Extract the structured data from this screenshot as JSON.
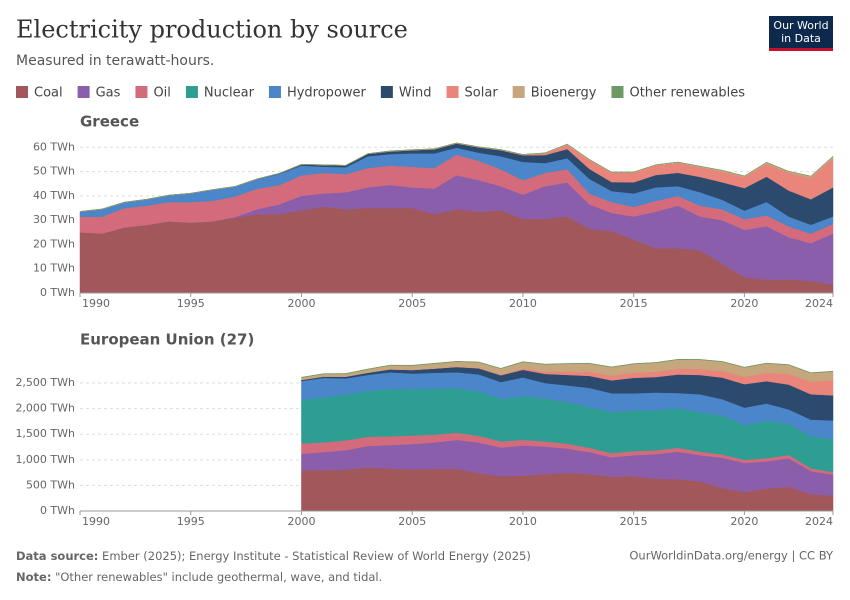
{
  "header": {
    "title": "Electricity production by source",
    "subtitle": "Measured in terawatt-hours.",
    "logo": [
      "Our World",
      "in Data"
    ]
  },
  "chart_data": [
    {
      "type": "area",
      "stacked": true,
      "title": "Greece",
      "x": [
        1990,
        1991,
        1992,
        1993,
        1994,
        1995,
        1996,
        1997,
        1998,
        1999,
        2000,
        2001,
        2002,
        2003,
        2004,
        2005,
        2006,
        2007,
        2008,
        2009,
        2010,
        2011,
        2012,
        2013,
        2014,
        2015,
        2016,
        2017,
        2018,
        2019,
        2020,
        2021,
        2022,
        2023,
        2024
      ],
      "xlim": [
        1990,
        2024
      ],
      "xticks": [
        1990,
        1995,
        2000,
        2005,
        2010,
        2015,
        2020,
        2024
      ],
      "ylim": [
        0,
        63
      ],
      "yticks": [
        {
          "value": 0,
          "label": "0 TWh"
        },
        {
          "value": 10,
          "label": "10 TWh"
        },
        {
          "value": 20,
          "label": "20 TWh"
        },
        {
          "value": 30,
          "label": "30 TWh"
        },
        {
          "value": 40,
          "label": "40 TWh"
        },
        {
          "value": 50,
          "label": "50 TWh"
        },
        {
          "value": 60,
          "label": "60 TWh"
        }
      ],
      "grid": true,
      "series": [
        {
          "name": "Coal",
          "color": "#a2575b",
          "values": [
            25,
            24.5,
            27,
            28,
            29.5,
            29,
            29.5,
            31,
            32.5,
            32.5,
            34,
            35.5,
            34.5,
            35,
            35,
            35,
            32.5,
            34.5,
            33.5,
            34,
            30.5,
            30.5,
            31.5,
            26.5,
            25.5,
            22,
            18.5,
            18.5,
            17.5,
            12,
            6.5,
            5.5,
            5.5,
            5,
            3.5
          ]
        },
        {
          "name": "Gas",
          "color": "#8a5eaa",
          "values": [
            0,
            0,
            0,
            0,
            0,
            0,
            0,
            0.3,
            2,
            4,
            6,
            5.5,
            7,
            8.5,
            9.5,
            8.5,
            10.5,
            14,
            13,
            10,
            10,
            13.5,
            14,
            10,
            7.5,
            9.5,
            15,
            17.5,
            14,
            18,
            19.5,
            22,
            17.5,
            15.5,
            21
          ]
        },
        {
          "name": "Oil",
          "color": "#d46b7c",
          "values": [
            6.5,
            7,
            8,
            8,
            8,
            8.5,
            8.5,
            8.5,
            8.5,
            8,
            8.5,
            8.5,
            7.5,
            8,
            8,
            8.5,
            8.5,
            8.5,
            8,
            7,
            6,
            5.5,
            5.5,
            4.5,
            4.5,
            4,
            4.5,
            4,
            4.5,
            4.5,
            4.5,
            4.5,
            4.5,
            4,
            4
          ]
        },
        {
          "name": "Nuclear",
          "color": "#2f9e92",
          "values": [
            0,
            0,
            0,
            0,
            0,
            0,
            0,
            0,
            0,
            0,
            0,
            0,
            0,
            0,
            0,
            0,
            0,
            0,
            0,
            0,
            0,
            0,
            0,
            0,
            0,
            0,
            0,
            0,
            0,
            0,
            0,
            0,
            0,
            0,
            0
          ]
        },
        {
          "name": "Hydropower",
          "color": "#4a86c9",
          "values": [
            2,
            3,
            2.3,
            2.5,
            2.7,
            3.5,
            4.5,
            4,
            3.8,
            4.5,
            4,
            2.5,
            2.8,
            4.8,
            4.7,
            5.5,
            6,
            2.8,
            3.3,
            5.3,
            7.5,
            4,
            4.5,
            6,
            4.5,
            5.5,
            5.5,
            4,
            5.5,
            3.9,
            3.4,
            5.5,
            4,
            3.6,
            3
          ]
        },
        {
          "name": "Wind",
          "color": "#2c4a6e",
          "values": [
            0,
            0,
            0,
            0,
            0,
            0,
            0,
            0,
            0.1,
            0.2,
            0.4,
            0.7,
            0.7,
            1,
            1.1,
            1.3,
            1.7,
            1.8,
            2.2,
            2.5,
            2.7,
            3.3,
            3.8,
            4.1,
            3.7,
            4.6,
            5.1,
            5.5,
            6.3,
            7.2,
            9.3,
            10.4,
            10.7,
            10.5,
            12
          ]
        },
        {
          "name": "Solar",
          "color": "#e9857b",
          "values": [
            0,
            0,
            0,
            0,
            0,
            0,
            0,
            0,
            0,
            0,
            0,
            0,
            0,
            0,
            0,
            0,
            0,
            0,
            0,
            0.05,
            0.15,
            0.6,
            1.7,
            3.6,
            3.8,
            3.9,
            3.9,
            4,
            4,
            4.4,
            4.5,
            5.3,
            7.3,
            8.8,
            12
          ]
        },
        {
          "name": "Bioenergy",
          "color": "#c6a67c",
          "values": [
            0.1,
            0.1,
            0.1,
            0.1,
            0.1,
            0.1,
            0.1,
            0.1,
            0.1,
            0.1,
            0.1,
            0.1,
            0.1,
            0.1,
            0.2,
            0.2,
            0.2,
            0.2,
            0.2,
            0.2,
            0.2,
            0.3,
            0.3,
            0.3,
            0.3,
            0.3,
            0.3,
            0.4,
            0.4,
            0.5,
            0.5,
            0.6,
            0.6,
            0.7,
            0.8
          ]
        },
        {
          "name": "Other renewables",
          "color": "#6d9a62",
          "values": [
            0,
            0,
            0,
            0,
            0,
            0,
            0,
            0,
            0,
            0,
            0,
            0,
            0,
            0,
            0,
            0,
            0,
            0,
            0,
            0,
            0,
            0,
            0,
            0,
            0,
            0,
            0,
            0,
            0,
            0,
            0,
            0,
            0,
            0,
            0
          ]
        }
      ]
    },
    {
      "type": "area",
      "stacked": true,
      "title": "European Union (27)",
      "x": [
        2000,
        2001,
        2002,
        2003,
        2004,
        2005,
        2006,
        2007,
        2008,
        2009,
        2010,
        2011,
        2012,
        2013,
        2014,
        2015,
        2016,
        2017,
        2018,
        2019,
        2020,
        2021,
        2022,
        2023,
        2024
      ],
      "xlim": [
        1990,
        2024
      ],
      "xticks": [
        1990,
        1995,
        2000,
        2005,
        2010,
        2015,
        2020,
        2024
      ],
      "ylim": [
        0,
        2950
      ],
      "yticks": [
        {
          "value": 0,
          "label": "0 TWh"
        },
        {
          "value": 500,
          "label": "500 TWh"
        },
        {
          "value": 1000,
          "label": "1,000 TWh"
        },
        {
          "value": 1500,
          "label": "1,500 TWh"
        },
        {
          "value": 2000,
          "label": "2,000 TWh"
        },
        {
          "value": 2500,
          "label": "2,500 TWh"
        }
      ],
      "grid": true,
      "series": [
        {
          "name": "Coal",
          "color": "#a2575b",
          "values": [
            790,
            800,
            810,
            850,
            830,
            810,
            820,
            820,
            740,
            680,
            690,
            720,
            740,
            720,
            670,
            680,
            630,
            620,
            580,
            450,
            370,
            440,
            470,
            330,
            300
          ]
        },
        {
          "name": "Gas",
          "color": "#8a5eaa",
          "values": [
            330,
            350,
            380,
            420,
            460,
            500,
            520,
            570,
            600,
            560,
            590,
            540,
            480,
            430,
            380,
            410,
            480,
            540,
            510,
            590,
            570,
            530,
            560,
            450,
            410
          ]
        },
        {
          "name": "Oil",
          "color": "#d46b7c",
          "values": [
            200,
            190,
            190,
            180,
            170,
            165,
            150,
            140,
            130,
            120,
            110,
            100,
            95,
            85,
            80,
            80,
            75,
            75,
            70,
            65,
            60,
            60,
            65,
            55,
            50
          ]
        },
        {
          "name": "Nuclear",
          "color": "#2f9e92",
          "values": [
            860,
            880,
            890,
            900,
            920,
            910,
            900,
            870,
            870,
            830,
            850,
            840,
            810,
            800,
            800,
            790,
            780,
            770,
            770,
            760,
            680,
            730,
            610,
            620,
            650
          ]
        },
        {
          "name": "Hydropower",
          "color": "#4a86c9",
          "values": [
            360,
            380,
            320,
            310,
            330,
            300,
            310,
            310,
            330,
            330,
            370,
            300,
            330,
            370,
            370,
            340,
            350,
            300,
            350,
            320,
            340,
            340,
            280,
            330,
            360
          ]
        },
        {
          "name": "Wind",
          "color": "#2c4a6e",
          "values": [
            22,
            27,
            35,
            43,
            58,
            70,
            82,
            104,
            118,
            132,
            149,
            179,
            204,
            236,
            253,
            302,
            303,
            362,
            378,
            422,
            458,
            436,
            486,
            496,
            490
          ]
        },
        {
          "name": "Solar",
          "color": "#e9857b",
          "values": [
            0.1,
            0.2,
            0.3,
            0.5,
            0.7,
            1.5,
            2.5,
            4,
            7.5,
            14,
            22,
            45,
            67,
            80,
            91,
            101,
            103,
            111,
            117,
            129,
            146,
            162,
            208,
            245,
            300
          ]
        },
        {
          "name": "Bioenergy",
          "color": "#c6a67c",
          "values": [
            45,
            50,
            55,
            65,
            75,
            85,
            95,
            100,
            110,
            115,
            130,
            140,
            150,
            160,
            165,
            170,
            175,
            180,
            180,
            180,
            180,
            185,
            175,
            170,
            165
          ]
        },
        {
          "name": "Other renewables",
          "color": "#6d9a62",
          "values": [
            6.5,
            6.5,
            6.5,
            6.5,
            6.5,
            6.5,
            6.5,
            6.5,
            6.5,
            6.5,
            6.5,
            6.5,
            6.5,
            6.5,
            6.5,
            6.5,
            6.5,
            6.5,
            6.5,
            6.5,
            6.5,
            6.5,
            6.5,
            6.5,
            6.5
          ]
        }
      ]
    }
  ],
  "footer": {
    "source_label": "Data source:",
    "source": "Ember (2025); Energy Institute - Statistical Review of World Energy (2025)",
    "link": "OurWorldinData.org/energy | CC BY",
    "note_label": "Note:",
    "note": "\"Other renewables\" include geothermal, wave, and tidal."
  }
}
